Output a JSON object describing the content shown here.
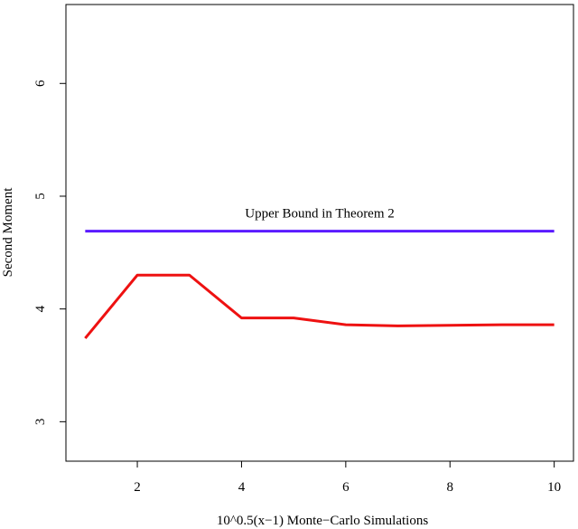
{
  "chart_data": {
    "type": "line",
    "title": "",
    "xlabel": "10^0.5(x−1) Monte−Carlo Simulations",
    "ylabel": "Second Moment",
    "xlim": [
      0.63,
      10.37
    ],
    "ylim": [
      2.65,
      6.7
    ],
    "x_ticks": [
      2,
      4,
      6,
      8,
      10
    ],
    "y_ticks": [
      3,
      4,
      5,
      6
    ],
    "x_tick_labels": [
      "2",
      "4",
      "6",
      "8",
      "10"
    ],
    "y_tick_labels": [
      "3",
      "4",
      "5",
      "6"
    ],
    "grid": false,
    "legend": "none",
    "series": [
      {
        "x": [
          1,
          2,
          3,
          4,
          5,
          6,
          7,
          8,
          9,
          10
        ],
        "values": [
          3.74,
          4.3,
          4.3,
          3.92,
          3.92,
          3.86,
          3.85,
          3.855,
          3.86,
          3.86
        ],
        "color": "#ee1111"
      },
      {
        "x": [
          1,
          10
        ],
        "values": [
          4.69,
          4.69
        ],
        "color": "#5a1aff"
      }
    ],
    "annotations": [
      {
        "text": "Upper Bound in Theorem 2",
        "x": 5.5,
        "y": 4.81
      }
    ]
  }
}
